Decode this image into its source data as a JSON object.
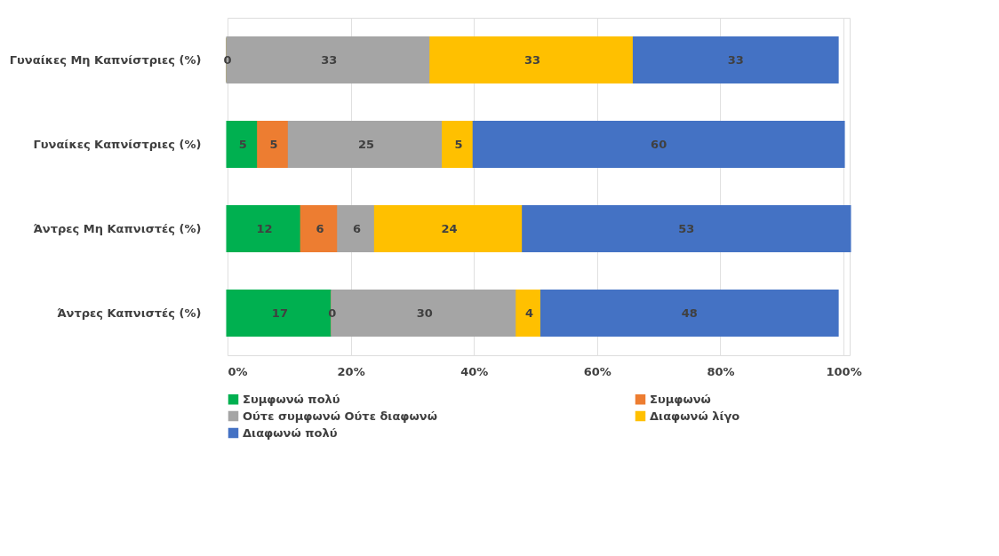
{
  "chart_data": {
    "type": "bar",
    "orientation": "horizontal",
    "stacked": true,
    "categories": [
      "Γυναίκες Μη Καπνίστριες (%)",
      "Γυναίκες Καπνίστριες  (%)",
      "Άντρες Μη Καπνιστές  (%)",
      "Άντρες Καπνιστές (%)"
    ],
    "series": [
      {
        "name": "Συμφωνώ πολύ",
        "color": "#00b050",
        "values": [
          0,
          5,
          12,
          17
        ],
        "value_labels": [
          "0",
          "5",
          "12",
          "17"
        ]
      },
      {
        "name": "Συμφωνώ",
        "color": "#ed7d31",
        "values": [
          0,
          5,
          6,
          0
        ],
        "value_labels": [
          null,
          "5",
          "6",
          "0"
        ]
      },
      {
        "name": "Ούτε συμφωνώ Ούτε διαφωνώ",
        "color": "#a5a5a5",
        "values": [
          33,
          25,
          6,
          30
        ],
        "value_labels": [
          "33",
          "25",
          "6",
          "30"
        ]
      },
      {
        "name": "Διαφωνώ λίγο",
        "color": "#ffc000",
        "values": [
          33,
          5,
          24,
          4
        ],
        "value_labels": [
          "33",
          "5",
          "24",
          "4"
        ]
      },
      {
        "name": "Διαφωνώ πολύ",
        "color": "#4472c4",
        "values": [
          33,
          60,
          53,
          48
        ],
        "value_labels": [
          "33",
          "60",
          "53",
          "48"
        ]
      }
    ],
    "xlim": [
      0,
      101
    ],
    "xticks": [
      {
        "value": 0,
        "label": "0%"
      },
      {
        "value": 20,
        "label": "20%"
      },
      {
        "value": 40,
        "label": "40%"
      },
      {
        "value": 60,
        "label": "60%"
      },
      {
        "value": 80,
        "label": "80%"
      },
      {
        "value": 100,
        "label": "100%"
      }
    ],
    "grid": "x",
    "legend": "bottom"
  }
}
